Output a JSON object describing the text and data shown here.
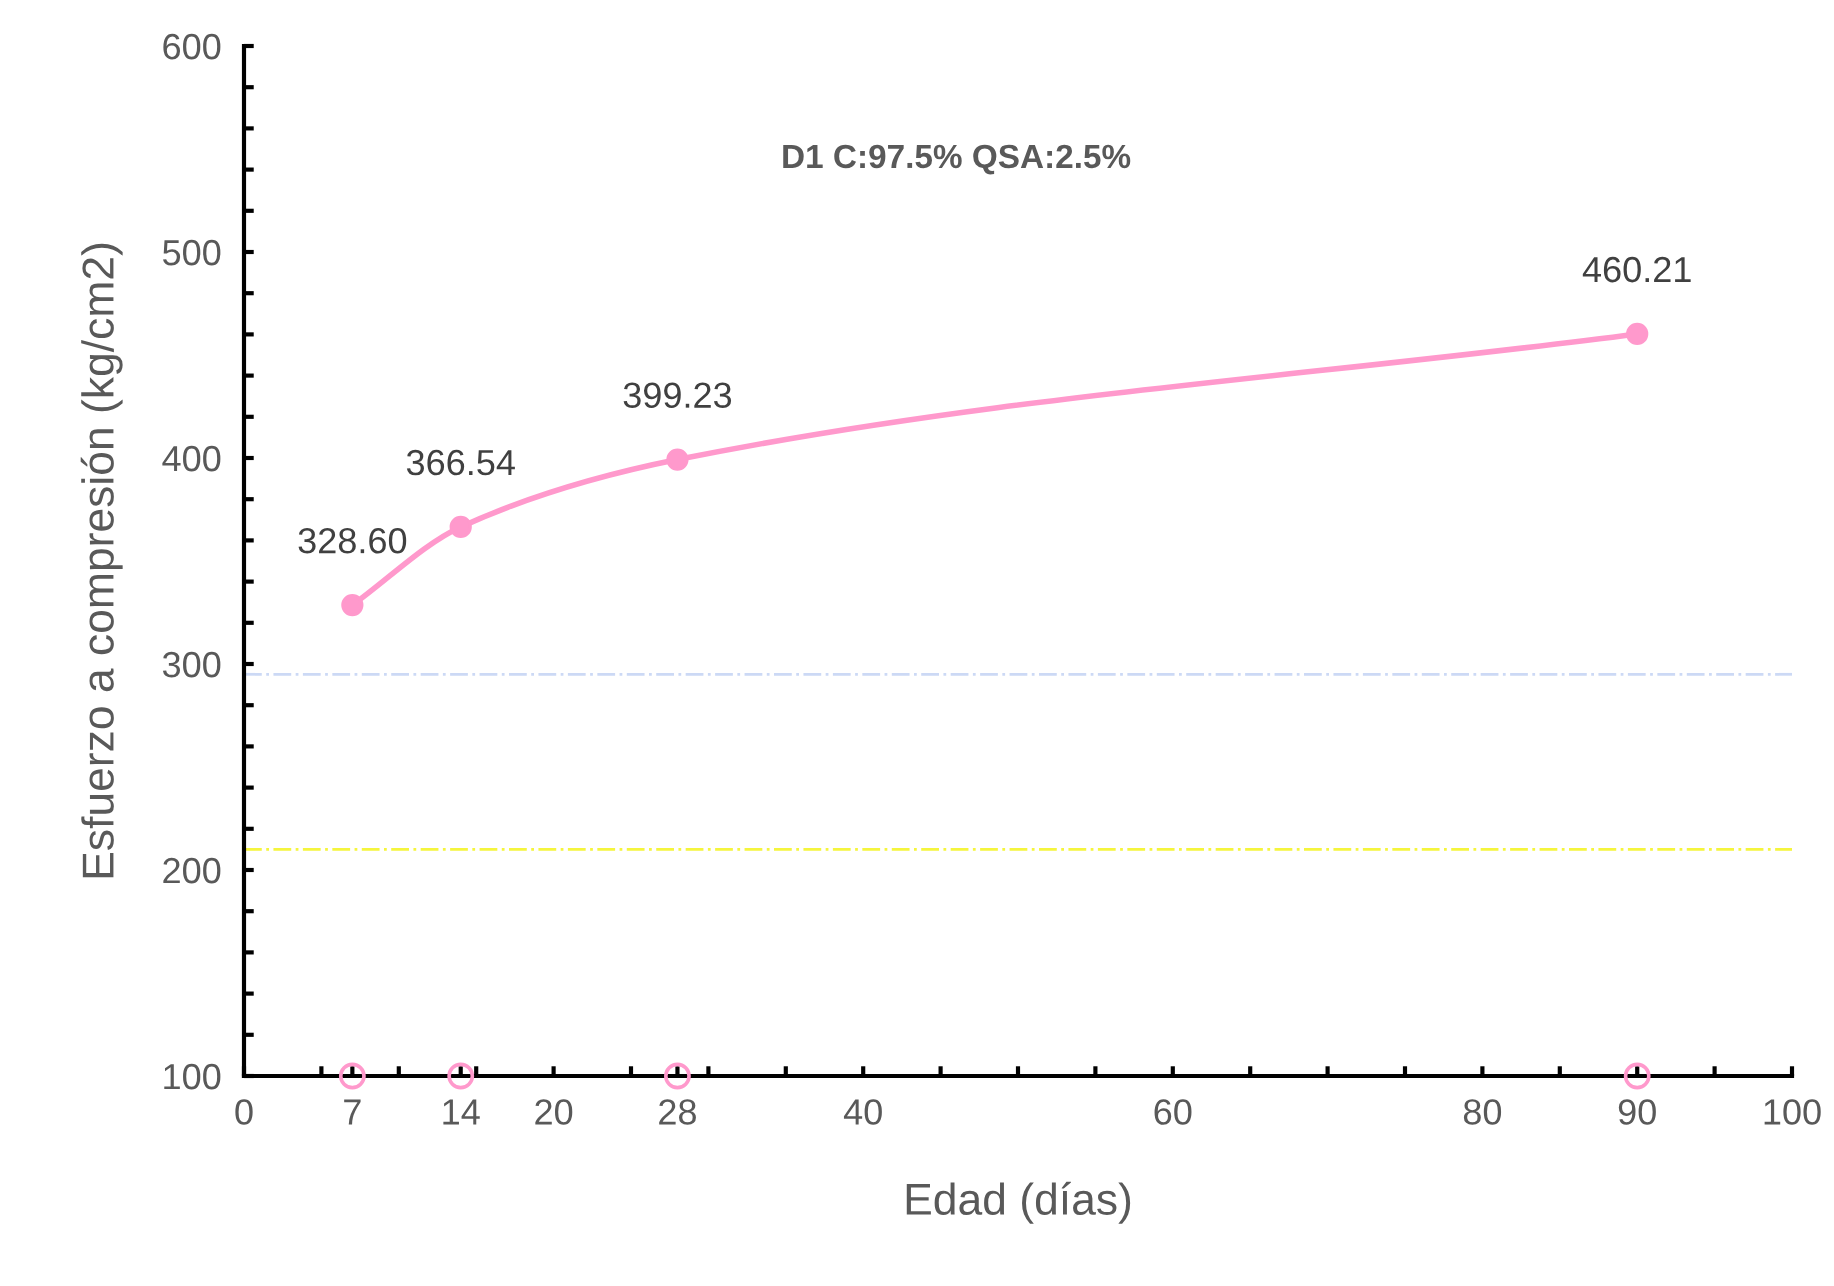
{
  "chart_data": {
    "type": "line",
    "title": "D1 C:97.5% QSA:2.5%",
    "xlabel": "Edad (días)",
    "ylabel": "Esfuerzo a compresión (kg/cm2)",
    "series": [
      {
        "x": [
          7,
          14,
          28,
          90
        ],
        "values": [
          328.6,
          366.54,
          399.23,
          460.21
        ],
        "value_labels": [
          "328.60",
          "366.54",
          "399.23",
          "460.21"
        ],
        "color": "#ff99cc",
        "marker": "circle"
      },
      {
        "type": "scatter",
        "x": [
          7,
          14,
          28,
          90
        ],
        "values": [
          100,
          100,
          100,
          100
        ],
        "color": "#ff99cc",
        "marker": "circle"
      }
    ],
    "xlim": [
      0,
      100
    ],
    "ylim": [
      100,
      600
    ],
    "xticks": [
      0,
      {
        "value": 5,
        "label": null
      },
      {
        "value": 7,
        "label": "7"
      },
      {
        "value": 10,
        "label": null
      },
      {
        "value": 14,
        "label": "14"
      },
      {
        "value": 15,
        "label": null
      },
      20,
      {
        "value": 25,
        "label": null
      },
      {
        "value": 28,
        "label": "28"
      },
      {
        "value": 30,
        "label": null
      },
      {
        "value": 35,
        "label": null
      },
      40,
      {
        "value": 45,
        "label": null
      },
      {
        "value": 50,
        "label": null
      },
      {
        "value": 55,
        "label": null
      },
      60,
      {
        "value": 65,
        "label": null
      },
      {
        "value": 70,
        "label": null
      },
      {
        "value": 75,
        "label": null
      },
      80,
      {
        "value": 85,
        "label": null
      },
      {
        "value": 90,
        "label": "90"
      },
      {
        "value": 95,
        "label": null
      },
      100
    ],
    "yticks": [
      100,
      {
        "value": 120,
        "label": null
      },
      {
        "value": 140,
        "label": null
      },
      {
        "value": 160,
        "label": null
      },
      {
        "value": 180,
        "label": null
      },
      200,
      {
        "value": 220,
        "label": null
      },
      {
        "value": 240,
        "label": null
      },
      {
        "value": 260,
        "label": null
      },
      {
        "value": 280,
        "label": null
      },
      300,
      {
        "value": 320,
        "label": null
      },
      {
        "value": 340,
        "label": null
      },
      {
        "value": 360,
        "label": null
      },
      {
        "value": 380,
        "label": null
      },
      400,
      {
        "value": 420,
        "label": null
      },
      {
        "value": 440,
        "label": null
      },
      {
        "value": 460,
        "label": null
      },
      {
        "value": 480,
        "label": null
      },
      500,
      {
        "value": 520,
        "label": null
      },
      {
        "value": 540,
        "label": null
      },
      {
        "value": 560,
        "label": null
      },
      {
        "value": 580,
        "label": null
      },
      600
    ],
    "ref_lines": [
      {
        "axis": "y",
        "value": 295,
        "color": "#ccd9f5",
        "line_style": "dashdot"
      },
      {
        "axis": "y",
        "value": 210,
        "color": "#f5f53d",
        "line_style": "dashdot"
      }
    ],
    "grid": false,
    "legend": false
  }
}
